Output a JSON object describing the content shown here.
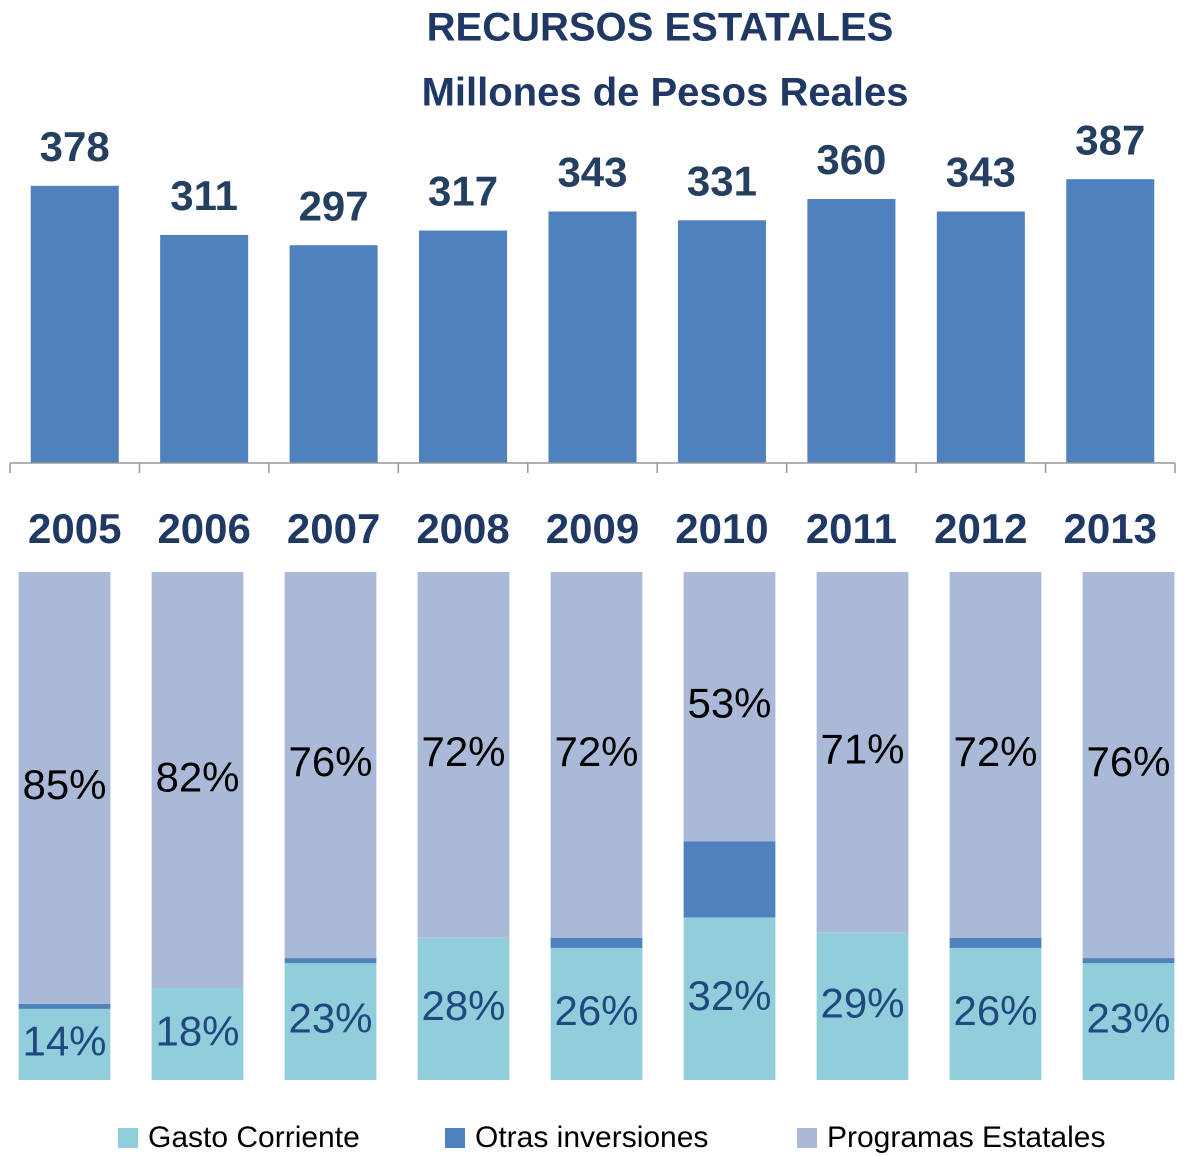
{
  "chart_data": [
    {
      "type": "bar",
      "title": "RECURSOS ESTATALES",
      "subtitle": "Millones de Pesos Reales",
      "categories": [
        "2005",
        "2006",
        "2007",
        "2008",
        "2009",
        "2010",
        "2011",
        "2012",
        "2013"
      ],
      "values": [
        378,
        311,
        297,
        317,
        343,
        331,
        360,
        343,
        387
      ],
      "color": "#4f81bd",
      "ylim": [
        0,
        450
      ]
    },
    {
      "type": "stacked_bar",
      "series": [
        {
          "name": "Gasto Corriente",
          "color": "#92cddc",
          "values": [
            14,
            18,
            23,
            28,
            26,
            32,
            29,
            26,
            23
          ],
          "value_labels": [
            "14%",
            "18%",
            "23%",
            "28%",
            "26%",
            "32%",
            "29%",
            "26%",
            "23%"
          ]
        },
        {
          "name": "Otras inversiones",
          "color": "#4f81bd",
          "values": [
            1,
            0,
            1,
            0,
            2,
            15,
            0,
            2,
            1
          ]
        },
        {
          "name": "Programas Estatales",
          "color": "#abb9d8",
          "values": [
            85,
            82,
            76,
            72,
            72,
            53,
            71,
            72,
            76
          ],
          "value_labels": [
            "85%",
            "82%",
            "76%",
            "72%",
            "72%",
            "53%",
            "71%",
            "72%",
            "76%"
          ]
        }
      ],
      "ylim": [
        0,
        100
      ]
    }
  ]
}
